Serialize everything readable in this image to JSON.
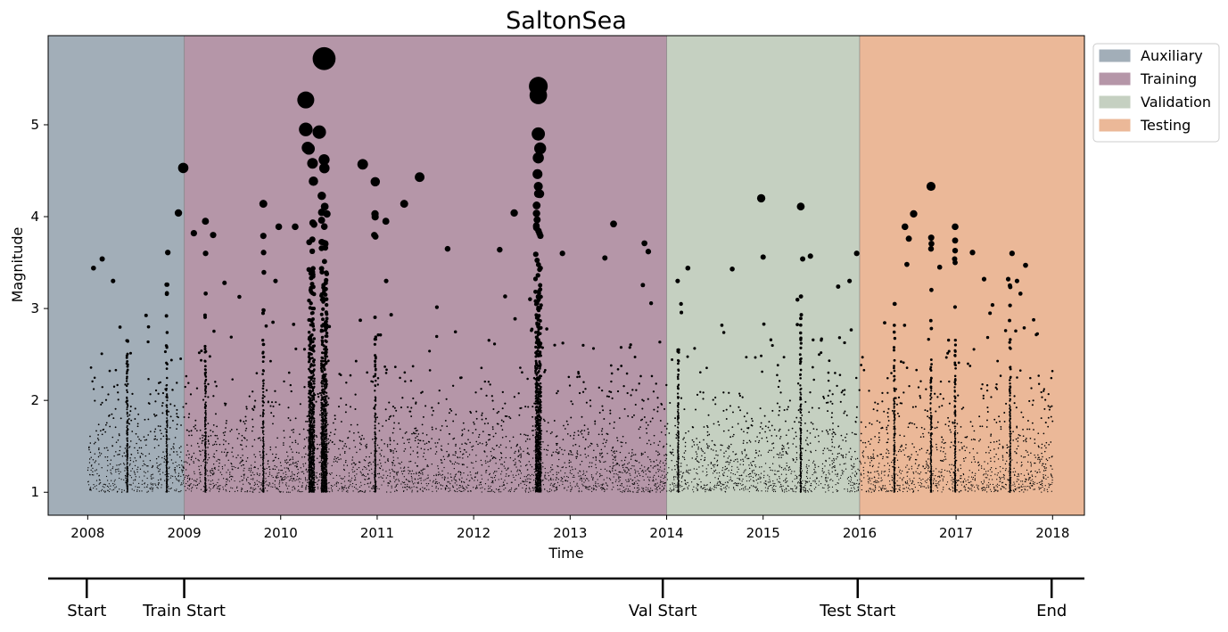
{
  "chart_data": {
    "type": "scatter",
    "title": "SaltonSea",
    "xlabel": "Time",
    "ylabel": "Magnitude",
    "xlim": [
      2007.59,
      2018.33
    ],
    "ylim": [
      0.75,
      5.97
    ],
    "x_ticks": [
      "2008",
      "2009",
      "2010",
      "2011",
      "2012",
      "2013",
      "2014",
      "2015",
      "2016",
      "2017",
      "2018"
    ],
    "y_ticks": [
      "1",
      "2",
      "3",
      "4",
      "5"
    ],
    "marker_size_encodes": "magnitude",
    "legend_position": "outside-top-right",
    "periods": [
      {
        "name": "Auxiliary",
        "start": 2007.59,
        "end": 2009.0,
        "color": "#a2aeb8"
      },
      {
        "name": "Training",
        "start": 2009.0,
        "end": 2014.0,
        "color": "#b596a8"
      },
      {
        "name": "Validation",
        "start": 2014.0,
        "end": 2016.0,
        "color": "#c5d0c1"
      },
      {
        "name": "Testing",
        "start": 2016.0,
        "end": 2018.33,
        "color": "#ebb898"
      }
    ],
    "large_events": [
      {
        "x": 2010.45,
        "y": 5.72
      },
      {
        "x": 2012.67,
        "y": 5.42
      },
      {
        "x": 2010.26,
        "y": 5.27
      },
      {
        "x": 2012.67,
        "y": 5.32
      },
      {
        "x": 2010.26,
        "y": 4.95
      },
      {
        "x": 2010.4,
        "y": 4.92
      },
      {
        "x": 2012.67,
        "y": 4.9
      },
      {
        "x": 2010.28,
        "y": 4.75
      },
      {
        "x": 2010.45,
        "y": 4.62
      },
      {
        "x": 2012.67,
        "y": 4.64
      },
      {
        "x": 2010.33,
        "y": 4.58
      },
      {
        "x": 2010.85,
        "y": 4.57
      },
      {
        "x": 2008.99,
        "y": 4.53
      },
      {
        "x": 2011.44,
        "y": 4.43
      },
      {
        "x": 2010.98,
        "y": 4.38
      },
      {
        "x": 2012.67,
        "y": 4.33
      },
      {
        "x": 2016.74,
        "y": 4.33
      },
      {
        "x": 2012.67,
        "y": 4.25
      },
      {
        "x": 2014.98,
        "y": 4.2
      },
      {
        "x": 2011.28,
        "y": 4.14
      },
      {
        "x": 2009.82,
        "y": 4.14
      },
      {
        "x": 2015.39,
        "y": 4.11
      },
      {
        "x": 2008.94,
        "y": 4.04
      },
      {
        "x": 2012.42,
        "y": 4.04
      },
      {
        "x": 2016.56,
        "y": 4.03
      },
      {
        "x": 2009.22,
        "y": 3.95
      },
      {
        "x": 2011.09,
        "y": 3.95
      },
      {
        "x": 2013.45,
        "y": 3.92
      },
      {
        "x": 2016.47,
        "y": 3.89
      },
      {
        "x": 2016.99,
        "y": 3.89
      },
      {
        "x": 2009.98,
        "y": 3.89
      },
      {
        "x": 2010.15,
        "y": 3.89
      },
      {
        "x": 2012.65,
        "y": 3.88
      },
      {
        "x": 2010.97,
        "y": 3.8
      },
      {
        "x": 2009.1,
        "y": 3.82
      },
      {
        "x": 2009.3,
        "y": 3.8
      },
      {
        "x": 2016.51,
        "y": 3.76
      },
      {
        "x": 2016.99,
        "y": 3.74
      },
      {
        "x": 2013.77,
        "y": 3.71
      },
      {
        "x": 2016.74,
        "y": 3.65
      },
      {
        "x": 2016.99,
        "y": 3.63
      },
      {
        "x": 2011.73,
        "y": 3.65
      },
      {
        "x": 2012.27,
        "y": 3.64
      },
      {
        "x": 2013.81,
        "y": 3.62
      },
      {
        "x": 2017.17,
        "y": 3.61
      },
      {
        "x": 2008.83,
        "y": 3.61
      },
      {
        "x": 2015.97,
        "y": 3.6
      },
      {
        "x": 2017.58,
        "y": 3.6
      },
      {
        "x": 2012.92,
        "y": 3.6
      },
      {
        "x": 2015.0,
        "y": 3.56
      },
      {
        "x": 2015.49,
        "y": 3.57
      },
      {
        "x": 2008.15,
        "y": 3.54
      },
      {
        "x": 2013.36,
        "y": 3.55
      },
      {
        "x": 2015.41,
        "y": 3.54
      },
      {
        "x": 2016.99,
        "y": 3.5
      },
      {
        "x": 2016.49,
        "y": 3.48
      },
      {
        "x": 2017.72,
        "y": 3.47
      },
      {
        "x": 2008.06,
        "y": 3.44
      },
      {
        "x": 2014.22,
        "y": 3.44
      },
      {
        "x": 2014.68,
        "y": 3.43
      },
      {
        "x": 2016.83,
        "y": 3.45
      },
      {
        "x": 2017.29,
        "y": 3.32
      },
      {
        "x": 2017.54,
        "y": 3.32
      }
    ],
    "dense_clusters": [
      {
        "x": 2008.41,
        "max_mag": 3.0
      },
      {
        "x": 2008.82,
        "max_mag": 3.61
      },
      {
        "x": 2009.22,
        "max_mag": 3.95
      },
      {
        "x": 2009.82,
        "max_mag": 4.14
      },
      {
        "x": 2010.32,
        "max_mag": 5.27
      },
      {
        "x": 2010.45,
        "max_mag": 5.72
      },
      {
        "x": 2010.98,
        "max_mag": 4.38
      },
      {
        "x": 2012.67,
        "max_mag": 5.42
      },
      {
        "x": 2014.12,
        "max_mag": 2.9
      },
      {
        "x": 2015.39,
        "max_mag": 4.11
      },
      {
        "x": 2016.36,
        "max_mag": 3.4
      },
      {
        "x": 2016.74,
        "max_mag": 4.33
      },
      {
        "x": 2016.99,
        "max_mag": 3.89
      },
      {
        "x": 2017.56,
        "max_mag": 3.6
      }
    ],
    "background_events": {
      "min_mag": 1.0,
      "typical_max_mag": 2.5,
      "decay": "exponential"
    }
  },
  "timeline": {
    "markers": [
      {
        "label": "Start",
        "x": 2007.99
      },
      {
        "label": "Train Start",
        "x": 2009.0
      },
      {
        "label": "Val Start",
        "x": 2013.96
      },
      {
        "label": "Test Start",
        "x": 2015.98
      },
      {
        "label": "End",
        "x": 2017.99
      }
    ]
  }
}
